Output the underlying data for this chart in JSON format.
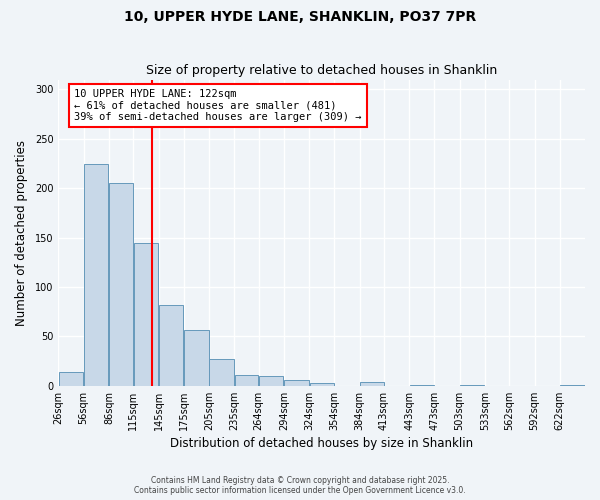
{
  "title": "10, UPPER HYDE LANE, SHANKLIN, PO37 7PR",
  "subtitle": "Size of property relative to detached houses in Shanklin",
  "xlabel": "Distribution of detached houses by size in Shanklin",
  "ylabel": "Number of detached properties",
  "bar_values": [
    14,
    225,
    205,
    145,
    82,
    57,
    27,
    11,
    10,
    6,
    3,
    0,
    4,
    0,
    1,
    0,
    1,
    0,
    0,
    0,
    1
  ],
  "bin_labels": [
    "26sqm",
    "56sqm",
    "86sqm",
    "115sqm",
    "145sqm",
    "175sqm",
    "205sqm",
    "235sqm",
    "264sqm",
    "294sqm",
    "324sqm",
    "354sqm",
    "384sqm",
    "413sqm",
    "443sqm",
    "473sqm",
    "503sqm",
    "533sqm",
    "562sqm",
    "592sqm",
    "622sqm"
  ],
  "bin_edges": [
    11,
    41,
    71,
    100,
    130,
    160,
    190,
    220,
    249,
    279,
    309,
    339,
    369,
    398,
    428,
    458,
    488,
    518,
    547,
    577,
    607,
    637
  ],
  "bar_color": "#c8d8e8",
  "bar_edge_color": "#6699bb",
  "vline_x": 122,
  "vline_color": "red",
  "annotation_title": "10 UPPER HYDE LANE: 122sqm",
  "annotation_line1": "← 61% of detached houses are smaller (481)",
  "annotation_line2": "39% of semi-detached houses are larger (309) →",
  "annotation_box_color": "white",
  "annotation_box_edge_color": "red",
  "ylim": [
    0,
    310
  ],
  "yticks": [
    0,
    50,
    100,
    150,
    200,
    250,
    300
  ],
  "footnote1": "Contains HM Land Registry data © Crown copyright and database right 2025.",
  "footnote2": "Contains public sector information licensed under the Open Government Licence v3.0.",
  "bg_color": "#f0f4f8",
  "grid_color": "white"
}
